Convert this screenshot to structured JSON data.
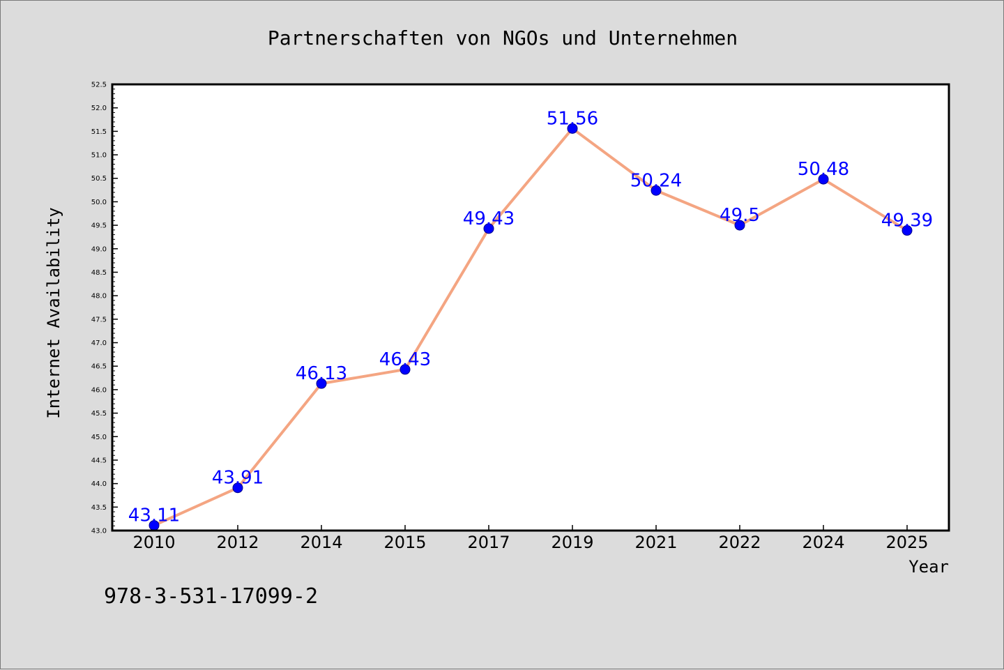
{
  "chart_data": {
    "type": "line",
    "title": "Partnerschaften von NGOs und Unternehmen",
    "xlabel": "Year",
    "ylabel": "Internet Availability",
    "categories": [
      "2010",
      "2012",
      "2014",
      "2015",
      "2017",
      "2019",
      "2021",
      "2022",
      "2024",
      "2025"
    ],
    "series": [
      {
        "values": [
          43.11,
          43.91,
          46.13,
          46.43,
          49.43,
          51.56,
          50.24,
          49.5,
          50.48,
          49.39
        ],
        "data_labels": [
          "43.11",
          "43.91",
          "46.13",
          "46.43",
          "49.43",
          "51.56",
          "50.24",
          "49.5",
          "50.48",
          "49.39"
        ]
      }
    ],
    "ylim": [
      43.0,
      52.5
    ],
    "yticks": [
      "43.0",
      "43.5",
      "44.0",
      "44.5",
      "45.0",
      "45.5",
      "46.0",
      "46.5",
      "47.0",
      "47.5",
      "48.0",
      "48.5",
      "49.0",
      "49.5",
      "50.0",
      "50.5",
      "51.0",
      "51.5",
      "52.0",
      "52.5"
    ],
    "grid": false,
    "legend": "none",
    "colors": {
      "line": "#f4a582",
      "marker": "#0000ff",
      "data_label": "#0000ff",
      "plot_background": "#ffffff",
      "figure_background": "#dcdcdc"
    }
  },
  "footer": {
    "isbn": "978-3-531-17099-2"
  }
}
